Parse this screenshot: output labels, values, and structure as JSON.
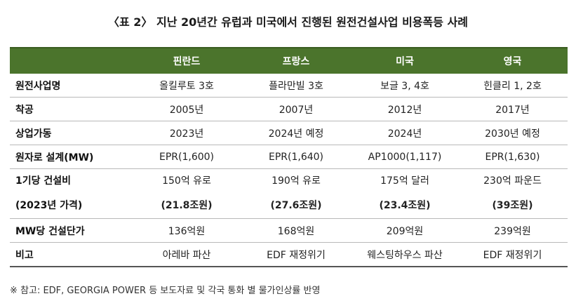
{
  "title": "〈표 2〉 지난 20년간 유럽과 미국에서 진행된 원전건설사업 비용폭등 사례",
  "table": {
    "headers": [
      "",
      "핀란드",
      "프랑스",
      "미국",
      "영국"
    ],
    "rows": {
      "project": {
        "label": "원전사업명",
        "values": [
          "올킬루토 3호",
          "플라만빌 3호",
          "보글 3, 4호",
          "힌클리 1, 2호"
        ]
      },
      "start": {
        "label": "착공",
        "values": [
          "2005년",
          "2007년",
          "2012년",
          "2017년"
        ]
      },
      "operation": {
        "label": "상업가동",
        "values": [
          "2023년",
          "2024년 예정",
          "2024년",
          "2030년 예정"
        ]
      },
      "design": {
        "label": "원자로 설계(MW)",
        "values": [
          "EPR(1,600)",
          "EPR(1,640)",
          "AP1000(1,117)",
          "EPR(1,630)"
        ]
      },
      "cost": {
        "label": "1기당 건설비",
        "label2": "(2023년 가격)",
        "values": [
          "150억 유로",
          "190억 유로",
          "175억 달러",
          "230억 파운드"
        ],
        "values2": [
          "(21.8조원)",
          "(27.6조원)",
          "(23.4조원)",
          "(39조원)"
        ]
      },
      "unit_cost": {
        "label": "MW당 건설단가",
        "values": [
          "136억원",
          "168억원",
          "209억원",
          "239억원"
        ]
      },
      "note": {
        "label": "비고",
        "values": [
          "아레바 파산",
          "EDF 재정위기",
          "웨스팅하우스 파산",
          "EDF 재정위기"
        ]
      }
    }
  },
  "footnote": "※ 참고: EDF, GEORGIA POWER 등 보도자료 및 각국 통화 별 물가인상률 반영",
  "colors": {
    "header_bg": "#4b742c",
    "header_text": "#ffffff"
  }
}
